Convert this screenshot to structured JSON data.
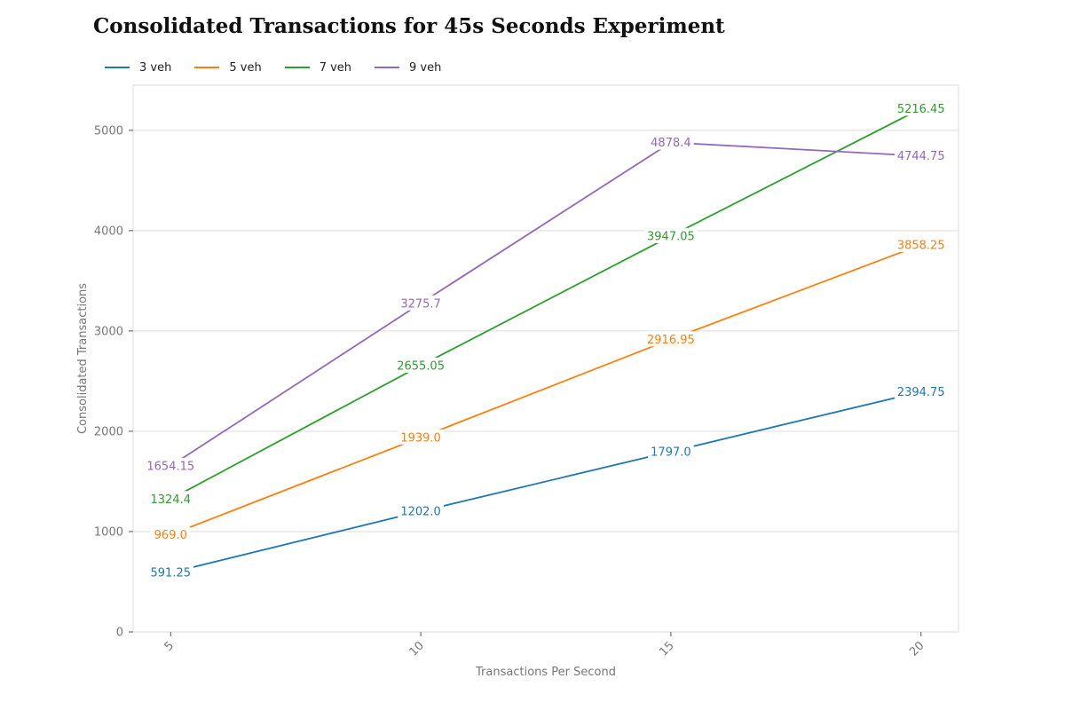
{
  "chart_data": {
    "type": "line",
    "title": "Consolidated Transactions for 45s Seconds Experiment",
    "xlabel": "Transactions Per Second",
    "ylabel": "Consolidated Transactions",
    "x": [
      5,
      10,
      15,
      20
    ],
    "x_ticks": [
      "5",
      "10",
      "15",
      "20"
    ],
    "y_ticks": [
      "0",
      "1000",
      "2000",
      "3000",
      "4000",
      "5000"
    ],
    "y_tick_values": [
      0,
      1000,
      2000,
      3000,
      4000,
      5000
    ],
    "xlim": [
      4.25,
      20.75
    ],
    "ylim": [
      0,
      5450
    ],
    "grid": "horizontal",
    "legend": "top-left",
    "series": [
      {
        "name": "3 veh",
        "color": "#1f77b4",
        "values": [
          591.25,
          1202.0,
          1797.0,
          2394.75
        ],
        "labels": [
          "591.25",
          "1202.0",
          "1797.0",
          "2394.75"
        ]
      },
      {
        "name": "5 veh",
        "color": "#ff7f0e",
        "values": [
          969.0,
          1939.0,
          2916.95,
          3858.25
        ],
        "labels": [
          "969.0",
          "1939.0",
          "2916.95",
          "3858.25"
        ]
      },
      {
        "name": "7 veh",
        "color": "#2ca02c",
        "values": [
          1324.4,
          2655.05,
          3947.05,
          5216.45
        ],
        "labels": [
          "1324.4",
          "2655.05",
          "3947.05",
          "5216.45"
        ]
      },
      {
        "name": "9 veh",
        "color": "#9467bd",
        "values": [
          1654.15,
          3275.7,
          4878.4,
          4744.75
        ],
        "labels": [
          "1654.15",
          "3275.7",
          "4878.4",
          "4744.75"
        ]
      }
    ]
  }
}
